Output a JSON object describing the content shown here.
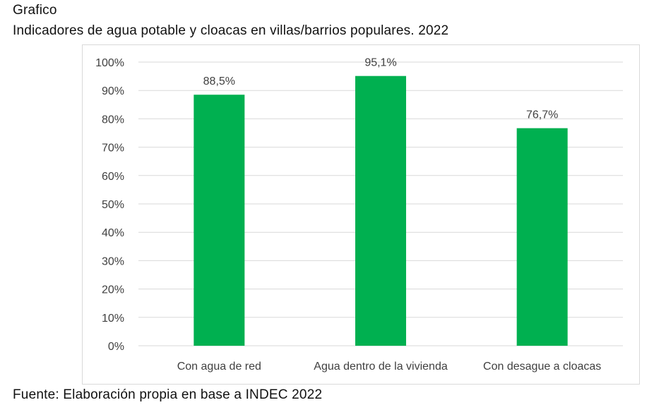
{
  "header": {
    "label": "Grafico",
    "title": "Indicadores de agua potable y cloacas en villas/barrios populares. 2022"
  },
  "footer": {
    "source": "Fuente: Elaboración propia en base a INDEC 2022"
  },
  "colors": {
    "bar": "#00b050",
    "grid": "#d9d9d9",
    "axis_text": "#404040"
  },
  "chart_data": {
    "type": "bar",
    "title": "Indicadores de agua potable y cloacas en villas/barrios populares. 2022",
    "xlabel": "",
    "ylabel": "",
    "categories": [
      "Con agua de red",
      "Agua dentro de la vivienda",
      "Con desague a cloacas"
    ],
    "values": [
      88.5,
      95.1,
      76.7
    ],
    "value_labels": [
      "88,5%",
      "95,1%",
      "76,7%"
    ],
    "ylim": [
      0,
      100
    ],
    "yticks": [
      0,
      10,
      20,
      30,
      40,
      50,
      60,
      70,
      80,
      90,
      100
    ],
    "ytick_labels": [
      "0%",
      "10%",
      "20%",
      "30%",
      "40%",
      "50%",
      "60%",
      "70%",
      "80%",
      "90%",
      "100%"
    ],
    "grid": true,
    "legend": "none"
  }
}
